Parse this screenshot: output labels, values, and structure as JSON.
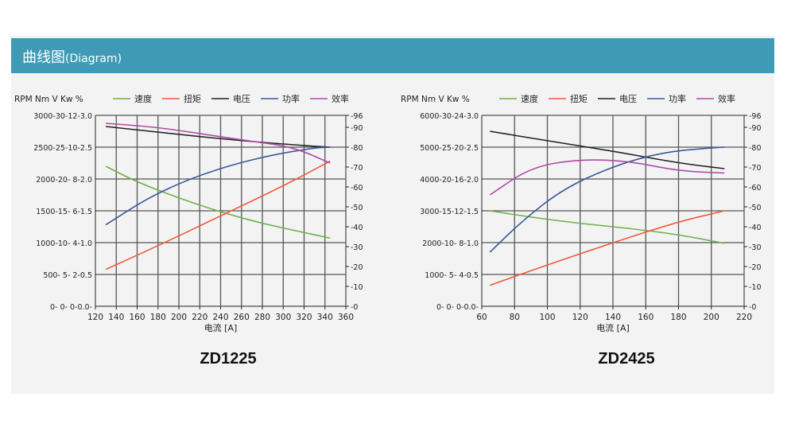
{
  "header": {
    "title_cn": "曲线图",
    "title_en": "(Diagram)"
  },
  "colors": {
    "header_bg": "#3f9bb5",
    "speed": "#6fb14a",
    "torque": "#ef5b3b",
    "voltage": "#222222",
    "power": "#3a5a9a",
    "efficiency": "#b04aa8"
  },
  "chart_data": [
    {
      "type": "line",
      "model": "ZD1225",
      "xlabel": "电流 [A]",
      "xlim": [
        120,
        360
      ],
      "xticks": [
        120,
        140,
        160,
        180,
        200,
        220,
        240,
        260,
        280,
        300,
        320,
        340,
        360
      ],
      "left_axis_header": "RPM  Nm  V  Kw  %",
      "left_tick_labels": [
        "0-  0- 0-0.0-",
        "500-  5- 2-0.5",
        "1000-10- 4-1.0",
        "1500-15- 6-1.5",
        "2000-20- 8-2.0",
        "2500-25-10-2.5",
        "3000-30-12-3.0"
      ],
      "right_ticks": [
        0,
        10,
        20,
        30,
        40,
        50,
        60,
        70,
        80,
        90,
        96
      ],
      "legend": [
        "速度",
        "扭矩",
        "电压",
        "功率",
        "效率"
      ],
      "series": [
        {
          "name": "速度",
          "unit": "RPM",
          "ylim": [
            0,
            3000
          ],
          "x": [
            130,
            160,
            200,
            240,
            280,
            320,
            345
          ],
          "values": [
            2200,
            1950,
            1700,
            1480,
            1300,
            1160,
            1070
          ]
        },
        {
          "name": "扭矩",
          "unit": "Nm",
          "ylim": [
            0,
            30
          ],
          "x": [
            130,
            180,
            240,
            300,
            345
          ],
          "values": [
            5.8,
            9.5,
            14.2,
            18.9,
            22.8
          ]
        },
        {
          "name": "电压",
          "unit": "V",
          "ylim": [
            0,
            12
          ],
          "x": [
            130,
            200,
            260,
            320,
            345
          ],
          "values": [
            11.3,
            10.8,
            10.4,
            10.1,
            10.0
          ]
        },
        {
          "name": "功率",
          "unit": "Kw",
          "ylim": [
            0,
            3.0
          ],
          "x": [
            130,
            170,
            210,
            250,
            290,
            330,
            345
          ],
          "values": [
            1.28,
            1.7,
            2.0,
            2.22,
            2.38,
            2.49,
            2.5
          ]
        },
        {
          "name": "效率",
          "unit": "%",
          "ylim": [
            0,
            96
          ],
          "x": [
            130,
            180,
            230,
            270,
            310,
            345
          ],
          "values": [
            92,
            90,
            86,
            83,
            80,
            72
          ]
        }
      ]
    },
    {
      "type": "line",
      "model": "ZD2425",
      "xlabel": "电流 [A]",
      "xlim": [
        60,
        220
      ],
      "xticks": [
        60,
        80,
        100,
        120,
        140,
        160,
        180,
        200,
        220
      ],
      "left_axis_header": "RPM  Nm  V  Kw  %",
      "left_tick_labels": [
        "0-  0- 0-0.0-",
        "1000- 5- 4-0.5",
        "2000-10- 8-1.0",
        "3000-15-12-1.5",
        "4000-20-16-2.0",
        "5000-25-20-2.5",
        "6000-30-24-3.0"
      ],
      "right_ticks": [
        0,
        10,
        20,
        30,
        40,
        50,
        60,
        70,
        80,
        90,
        96
      ],
      "legend": [
        "速度",
        "扭矩",
        "电压",
        "功率",
        "效率"
      ],
      "series": [
        {
          "name": "速度",
          "unit": "RPM",
          "ylim": [
            0,
            6000
          ],
          "x": [
            65,
            90,
            120,
            150,
            180,
            208
          ],
          "values": [
            3000,
            2800,
            2600,
            2450,
            2250,
            1980
          ]
        },
        {
          "name": "扭矩",
          "unit": "Nm",
          "ylim": [
            0,
            30
          ],
          "x": [
            65,
            100,
            140,
            180,
            208
          ],
          "values": [
            3.3,
            6.5,
            10.0,
            13.3,
            15.0
          ]
        },
        {
          "name": "电压",
          "unit": "V",
          "ylim": [
            0,
            24
          ],
          "x": [
            65,
            100,
            140,
            180,
            208
          ],
          "values": [
            22.0,
            20.8,
            19.5,
            18.0,
            17.3
          ]
        },
        {
          "name": "功率",
          "unit": "Kw",
          "ylim": [
            0,
            3.0
          ],
          "x": [
            65,
            85,
            110,
            140,
            170,
            200,
            208
          ],
          "values": [
            0.85,
            1.35,
            1.85,
            2.2,
            2.42,
            2.49,
            2.5
          ]
        },
        {
          "name": "效率",
          "unit": "%",
          "ylim": [
            0,
            96
          ],
          "x": [
            65,
            90,
            120,
            150,
            180,
            208
          ],
          "values": [
            56,
            70,
            74,
            73,
            68,
            67
          ]
        }
      ]
    }
  ]
}
